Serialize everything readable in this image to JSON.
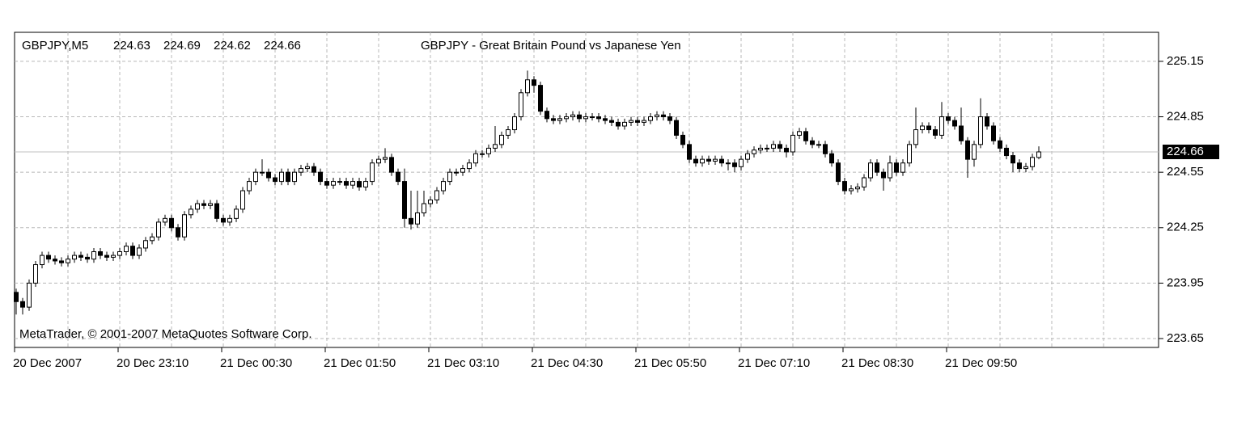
{
  "chart_data": {
    "type": "candlestick",
    "symbol": "GBPJPY,M5",
    "title": "GBPJPY - Great Britain Pound vs Japanese Yen",
    "copyright": "MetaTrader, © 2001-2007 MetaQuotes Software Corp.",
    "categories": [
      "20 Dec 2007",
      null,
      null,
      null,
      null,
      null,
      null,
      null,
      null,
      null,
      null,
      null,
      null,
      null,
      null,
      null,
      "20 Dec 23:10",
      null,
      null,
      null,
      null,
      null,
      null,
      null,
      null,
      null,
      null,
      null,
      null,
      null,
      null,
      null,
      "21 Dec 00:30",
      null,
      null,
      null,
      null,
      null,
      null,
      null,
      null,
      null,
      null,
      null,
      null,
      null,
      null,
      null,
      "21 Dec 01:50",
      null,
      null,
      null,
      null,
      null,
      null,
      null,
      null,
      null,
      null,
      null,
      null,
      null,
      null,
      null,
      "21 Dec 03:10",
      null,
      null,
      null,
      null,
      null,
      null,
      null,
      null,
      null,
      null,
      null,
      null,
      null,
      null,
      null,
      "21 Dec 04:30",
      null,
      null,
      null,
      null,
      null,
      null,
      null,
      null,
      null,
      null,
      null,
      null,
      null,
      null,
      null,
      "21 Dec 05:50",
      null,
      null,
      null,
      null,
      null,
      null,
      null,
      null,
      null,
      null,
      null,
      null,
      null,
      null,
      null,
      "21 Dec 07:10",
      null,
      null,
      null,
      null,
      null,
      null,
      null,
      null,
      null,
      null,
      null,
      null,
      null,
      null,
      null,
      "21 Dec 08:30",
      null,
      null,
      null,
      null,
      null,
      null,
      null,
      null,
      null,
      null,
      null,
      null,
      null,
      null,
      null,
      "21 Dec 09:50",
      null,
      null,
      null,
      null,
      null,
      null,
      null,
      null,
      null,
      null,
      null,
      null,
      null,
      null
    ],
    "open": [
      223.9,
      223.85,
      223.82,
      223.95,
      224.05,
      224.1,
      224.08,
      224.07,
      224.06,
      224.08,
      224.1,
      224.09,
      224.08,
      224.12,
      224.1,
      224.09,
      224.1,
      224.12,
      224.15,
      224.1,
      224.14,
      224.18,
      224.2,
      224.28,
      224.3,
      224.25,
      224.2,
      224.32,
      224.35,
      224.38,
      224.37,
      224.38,
      224.3,
      224.28,
      224.3,
      224.35,
      224.45,
      224.5,
      224.55,
      224.55,
      224.52,
      224.5,
      224.55,
      224.5,
      224.55,
      224.57,
      224.58,
      224.55,
      224.5,
      224.48,
      224.5,
      224.5,
      224.48,
      224.5,
      224.47,
      224.5,
      224.6,
      224.62,
      224.63,
      224.55,
      224.5,
      224.3,
      224.27,
      224.33,
      224.38,
      224.4,
      224.45,
      224.5,
      224.55,
      224.55,
      224.57,
      224.6,
      224.65,
      224.65,
      224.68,
      224.7,
      224.75,
      224.78,
      224.85,
      224.98,
      225.05,
      225.02,
      224.88,
      224.84,
      224.83,
      224.84,
      224.85,
      224.86,
      224.84,
      224.85,
      224.85,
      224.84,
      224.83,
      224.82,
      224.8,
      224.82,
      224.83,
      224.82,
      224.83,
      224.85,
      224.86,
      224.85,
      224.83,
      224.75,
      224.7,
      224.62,
      224.6,
      224.62,
      224.61,
      224.62,
      224.6,
      224.6,
      224.58,
      224.62,
      224.65,
      224.67,
      224.68,
      224.68,
      224.7,
      224.68,
      224.66,
      224.75,
      224.77,
      224.72,
      224.7,
      224.7,
      224.65,
      224.6,
      224.5,
      224.45,
      224.46,
      224.47,
      224.52,
      224.6,
      224.55,
      224.52,
      224.6,
      224.55,
      224.6,
      224.7,
      224.78,
      224.8,
      224.78,
      224.75,
      224.85,
      224.83,
      224.8,
      224.72,
      224.62,
      224.7,
      224.85,
      224.8,
      224.72,
      224.68,
      224.64,
      224.6,
      224.57,
      224.58,
      224.63
    ],
    "high": [
      223.92,
      223.87,
      223.97,
      224.07,
      224.12,
      224.12,
      224.1,
      224.09,
      224.1,
      224.12,
      224.12,
      224.11,
      224.14,
      224.14,
      224.12,
      224.12,
      224.14,
      224.17,
      224.17,
      224.16,
      224.2,
      224.22,
      224.3,
      224.32,
      224.32,
      224.27,
      224.34,
      224.37,
      224.4,
      224.4,
      224.4,
      224.4,
      224.32,
      224.32,
      224.37,
      224.47,
      224.52,
      224.57,
      224.62,
      224.57,
      224.54,
      224.57,
      224.57,
      224.57,
      224.59,
      224.6,
      224.6,
      224.57,
      224.52,
      224.52,
      224.52,
      224.52,
      224.52,
      224.52,
      224.52,
      224.62,
      224.64,
      224.68,
      224.65,
      224.57,
      224.57,
      224.45,
      224.45,
      224.45,
      224.42,
      224.47,
      224.52,
      224.57,
      224.57,
      224.59,
      224.62,
      224.67,
      224.67,
      224.7,
      224.8,
      224.77,
      224.8,
      224.87,
      225.0,
      225.1,
      225.07,
      225.04,
      224.9,
      224.86,
      224.86,
      224.87,
      224.88,
      224.88,
      224.87,
      224.87,
      224.87,
      224.86,
      224.85,
      224.84,
      224.84,
      224.85,
      224.85,
      224.85,
      224.87,
      224.88,
      224.88,
      224.87,
      224.85,
      224.77,
      224.72,
      224.64,
      224.64,
      224.64,
      224.64,
      224.64,
      224.62,
      224.62,
      224.64,
      224.67,
      224.69,
      224.7,
      224.7,
      224.72,
      224.72,
      224.7,
      224.77,
      224.79,
      224.79,
      224.74,
      224.72,
      224.72,
      224.67,
      224.62,
      224.52,
      224.48,
      224.49,
      224.54,
      224.62,
      224.62,
      224.57,
      224.64,
      224.62,
      224.62,
      224.72,
      224.9,
      224.82,
      224.82,
      224.8,
      224.93,
      224.87,
      224.85,
      224.9,
      224.74,
      224.72,
      224.95,
      224.87,
      224.82,
      224.74,
      224.7,
      224.66,
      224.62,
      224.6,
      224.65,
      224.69
    ],
    "low": [
      223.78,
      223.78,
      223.8,
      223.93,
      224.03,
      224.06,
      224.05,
      224.04,
      224.04,
      224.06,
      224.07,
      224.06,
      224.06,
      224.08,
      224.07,
      224.07,
      224.08,
      224.1,
      224.08,
      224.08,
      224.12,
      224.16,
      224.18,
      224.26,
      224.23,
      224.18,
      224.18,
      224.3,
      224.33,
      224.35,
      224.35,
      224.28,
      224.26,
      224.26,
      224.28,
      224.33,
      224.43,
      224.48,
      224.53,
      224.5,
      224.48,
      224.48,
      224.48,
      224.48,
      224.53,
      224.55,
      224.53,
      224.48,
      224.46,
      224.46,
      224.48,
      224.46,
      224.46,
      224.45,
      224.45,
      224.48,
      224.58,
      224.6,
      224.53,
      224.48,
      224.25,
      224.24,
      224.25,
      224.31,
      224.36,
      224.38,
      224.43,
      224.48,
      224.53,
      224.53,
      224.55,
      224.58,
      224.63,
      224.63,
      224.66,
      224.68,
      224.73,
      224.76,
      224.83,
      224.96,
      224.98,
      224.86,
      224.82,
      224.81,
      224.81,
      224.82,
      224.83,
      224.82,
      224.82,
      224.83,
      224.82,
      224.81,
      224.8,
      224.78,
      224.78,
      224.8,
      224.8,
      224.8,
      224.81,
      224.83,
      224.83,
      224.81,
      224.73,
      224.68,
      224.6,
      224.58,
      224.58,
      224.59,
      224.59,
      224.58,
      224.56,
      224.55,
      224.56,
      224.6,
      224.63,
      224.65,
      224.66,
      224.66,
      224.66,
      224.63,
      224.64,
      224.73,
      224.7,
      224.68,
      224.68,
      224.63,
      224.58,
      224.48,
      224.43,
      224.43,
      224.44,
      224.45,
      224.5,
      224.53,
      224.45,
      224.5,
      224.53,
      224.53,
      224.58,
      224.68,
      224.76,
      224.76,
      224.73,
      224.73,
      224.81,
      224.78,
      224.7,
      224.52,
      224.58,
      224.68,
      224.78,
      224.7,
      224.66,
      224.62,
      224.55,
      224.55,
      224.55,
      224.56,
      224.62
    ],
    "close": [
      223.85,
      223.82,
      223.95,
      224.05,
      224.1,
      224.08,
      224.07,
      224.06,
      224.08,
      224.1,
      224.09,
      224.08,
      224.12,
      224.1,
      224.09,
      224.1,
      224.12,
      224.15,
      224.1,
      224.14,
      224.18,
      224.2,
      224.28,
      224.3,
      224.25,
      224.2,
      224.32,
      224.35,
      224.38,
      224.37,
      224.38,
      224.3,
      224.28,
      224.3,
      224.35,
      224.45,
      224.5,
      224.55,
      224.55,
      224.52,
      224.5,
      224.55,
      224.5,
      224.55,
      224.57,
      224.58,
      224.55,
      224.5,
      224.48,
      224.5,
      224.5,
      224.48,
      224.5,
      224.47,
      224.5,
      224.6,
      224.62,
      224.63,
      224.55,
      224.5,
      224.3,
      224.27,
      224.33,
      224.38,
      224.4,
      224.45,
      224.5,
      224.55,
      224.55,
      224.57,
      224.6,
      224.65,
      224.65,
      224.68,
      224.7,
      224.75,
      224.78,
      224.85,
      224.98,
      225.05,
      225.02,
      224.88,
      224.84,
      224.83,
      224.84,
      224.85,
      224.86,
      224.84,
      224.85,
      224.85,
      224.84,
      224.83,
      224.82,
      224.8,
      224.82,
      224.83,
      224.82,
      224.83,
      224.85,
      224.86,
      224.85,
      224.83,
      224.75,
      224.7,
      224.62,
      224.6,
      224.62,
      224.61,
      224.62,
      224.6,
      224.6,
      224.58,
      224.62,
      224.65,
      224.67,
      224.68,
      224.68,
      224.7,
      224.68,
      224.66,
      224.75,
      224.77,
      224.72,
      224.7,
      224.7,
      224.65,
      224.6,
      224.5,
      224.45,
      224.46,
      224.47,
      224.52,
      224.6,
      224.55,
      224.52,
      224.6,
      224.55,
      224.6,
      224.7,
      224.78,
      224.8,
      224.78,
      224.75,
      224.85,
      224.83,
      224.8,
      224.72,
      224.62,
      224.7,
      224.85,
      224.8,
      224.72,
      224.68,
      224.64,
      224.6,
      224.57,
      224.58,
      224.63,
      224.66
    ],
    "up_color": "#ffffff",
    "down_color": "#000000",
    "ylim": [
      223.602,
      225.307
    ],
    "yticks": [
      225.15,
      224.85,
      224.55,
      224.25,
      223.95,
      223.65
    ],
    "grid": true
  }
}
